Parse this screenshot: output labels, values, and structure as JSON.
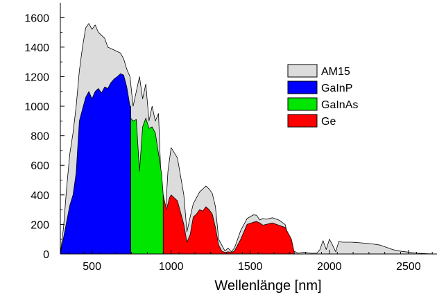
{
  "chart_data": {
    "type": "area",
    "xlabel": "Wellenlänge [nm]",
    "ylabel": "",
    "xlim": [
      300,
      2680
    ],
    "ylim": [
      0,
      1700
    ],
    "x_ticks": [
      500,
      1000,
      1500,
      2000,
      2500
    ],
    "y_ticks": [
      0,
      200,
      400,
      600,
      800,
      1000,
      1200,
      1400,
      1600
    ],
    "x_tick_labels": [
      "500",
      "1000",
      "1500",
      "2000",
      "2500"
    ],
    "y_tick_labels": [
      "0",
      "200",
      "400",
      "600",
      "800",
      "1000",
      "1200",
      "1400",
      "1600"
    ],
    "grid": false,
    "legend_position": "top-right",
    "series": [
      {
        "name": "AM15",
        "color": "#dcdcdc",
        "x": [
          300,
          320,
          340,
          360,
          380,
          400,
          420,
          440,
          460,
          480,
          500,
          520,
          540,
          560,
          580,
          600,
          640,
          680,
          700,
          720,
          740,
          760,
          780,
          800,
          820,
          840,
          860,
          880,
          900,
          920,
          940,
          960,
          980,
          1000,
          1040,
          1080,
          1100,
          1120,
          1140,
          1180,
          1220,
          1240,
          1260,
          1280,
          1300,
          1340,
          1360,
          1380,
          1400,
          1440,
          1480,
          1520,
          1540,
          1560,
          1580,
          1600,
          1640,
          1680,
          1720,
          1760,
          1800,
          1840,
          1880,
          1920,
          1940,
          1960,
          1980,
          2000,
          2020,
          2040,
          2060,
          2080,
          2100,
          2140,
          2200,
          2260,
          2320,
          2360,
          2400,
          2440,
          2480,
          2520,
          2560,
          2620,
          2680
        ],
        "values": [
          0,
          180,
          450,
          680,
          820,
          1000,
          1240,
          1400,
          1530,
          1560,
          1520,
          1550,
          1500,
          1480,
          1460,
          1400,
          1380,
          1360,
          1320,
          1250,
          1200,
          1000,
          1100,
          1200,
          1050,
          1150,
          900,
          1000,
          900,
          950,
          400,
          200,
          560,
          720,
          650,
          400,
          150,
          250,
          340,
          420,
          460,
          440,
          410,
          320,
          100,
          20,
          40,
          15,
          40,
          160,
          240,
          265,
          262,
          230,
          240,
          235,
          245,
          230,
          200,
          30,
          5,
          12,
          5,
          5,
          30,
          90,
          30,
          100,
          60,
          15,
          85,
          80,
          80,
          80,
          75,
          70,
          60,
          45,
          30,
          20,
          15,
          10,
          5,
          2,
          0
        ]
      },
      {
        "name": "GaInP",
        "color": "#0000ff",
        "x": [
          300,
          320,
          340,
          360,
          380,
          400,
          420,
          440,
          460,
          480,
          500,
          520,
          540,
          560,
          580,
          600,
          620,
          640,
          660,
          680,
          700,
          720,
          740,
          745
        ],
        "values": [
          0,
          110,
          220,
          330,
          400,
          550,
          900,
          980,
          1060,
          1100,
          1050,
          1100,
          1120,
          1090,
          1130,
          1120,
          1160,
          1185,
          1200,
          1220,
          1210,
          1130,
          1000,
          1000
        ]
      },
      {
        "name": "GaInAs",
        "color": "#00e600",
        "x": [
          745,
          760,
          780,
          800,
          820,
          840,
          860,
          880,
          900,
          920,
          940,
          950
        ],
        "values": [
          920,
          900,
          910,
          560,
          860,
          920,
          850,
          860,
          820,
          680,
          540,
          400
        ]
      },
      {
        "name": "Ge",
        "color": "#ff0000",
        "x": [
          950,
          970,
          990,
          1000,
          1040,
          1080,
          1100,
          1120,
          1140,
          1160,
          1180,
          1200,
          1220,
          1240,
          1260,
          1280,
          1300,
          1320,
          1340,
          1360,
          1380,
          1400,
          1440,
          1480,
          1520,
          1540,
          1560,
          1580,
          1600,
          1640,
          1680,
          1720,
          1760,
          1780
        ],
        "values": [
          400,
          300,
          380,
          400,
          360,
          200,
          80,
          130,
          250,
          270,
          300,
          290,
          320,
          300,
          270,
          180,
          60,
          20,
          10,
          15,
          10,
          20,
          100,
          200,
          215,
          220,
          210,
          195,
          200,
          210,
          195,
          180,
          100,
          0
        ]
      }
    ]
  }
}
